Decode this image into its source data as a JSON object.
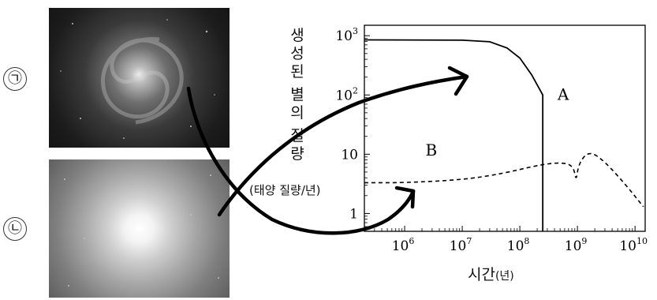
{
  "labels": {
    "a": "㉠",
    "b": "㉡"
  },
  "photos": [
    {
      "name": "spiral-galaxy-image"
    },
    {
      "name": "elliptical-galaxy-image"
    }
  ],
  "chart_data": {
    "type": "line",
    "ylabel_chars": [
      "생",
      "성",
      "된",
      "별",
      "의",
      "질",
      "량"
    ],
    "ylabel_unit": "(태양 질량/년)",
    "xlabel": "시간",
    "xlabel_unit": "(년)",
    "xscale": "log",
    "yscale": "log",
    "xlim": [
      200000,
      15000000000
    ],
    "ylim": [
      0.5,
      1500
    ],
    "yticks": [
      {
        "v": 1000,
        "base": "10",
        "exp": "3"
      },
      {
        "v": 100,
        "base": "10",
        "exp": "2"
      },
      {
        "v": 10,
        "base": "10",
        "exp": ""
      },
      {
        "v": 1,
        "base": "1",
        "exp": ""
      }
    ],
    "xticks": [
      {
        "v": 1000000,
        "base": "10",
        "exp": "6"
      },
      {
        "v": 10000000,
        "base": "10",
        "exp": "7"
      },
      {
        "v": 100000000,
        "base": "10",
        "exp": "8"
      },
      {
        "v": 1000000000,
        "base": "10",
        "exp": "9"
      },
      {
        "v": 10000000000,
        "base": "10",
        "exp": "10"
      }
    ],
    "series": [
      {
        "name": "A",
        "style": "solid",
        "points": [
          [
            200000,
            850
          ],
          [
            10000000,
            840
          ],
          [
            30000000,
            790
          ],
          [
            60000000,
            620
          ],
          [
            100000000,
            420
          ],
          [
            160000000,
            220
          ],
          [
            250000000,
            100
          ],
          [
            250000000,
            0.5
          ]
        ]
      },
      {
        "name": "B",
        "style": "dashed",
        "points": [
          [
            200000,
            3.3
          ],
          [
            1000000,
            3.3
          ],
          [
            10000000,
            3.7
          ],
          [
            50000000,
            4.7
          ],
          [
            200000000,
            6.5
          ],
          [
            500000000,
            7.3
          ],
          [
            850000000,
            6.5
          ],
          [
            950000000,
            3.4
          ],
          [
            1050000000,
            7.0
          ],
          [
            1600000000,
            11.5
          ],
          [
            3000000000,
            7.5
          ],
          [
            7000000000,
            3.0
          ],
          [
            14000000000,
            1.3
          ]
        ]
      }
    ]
  }
}
